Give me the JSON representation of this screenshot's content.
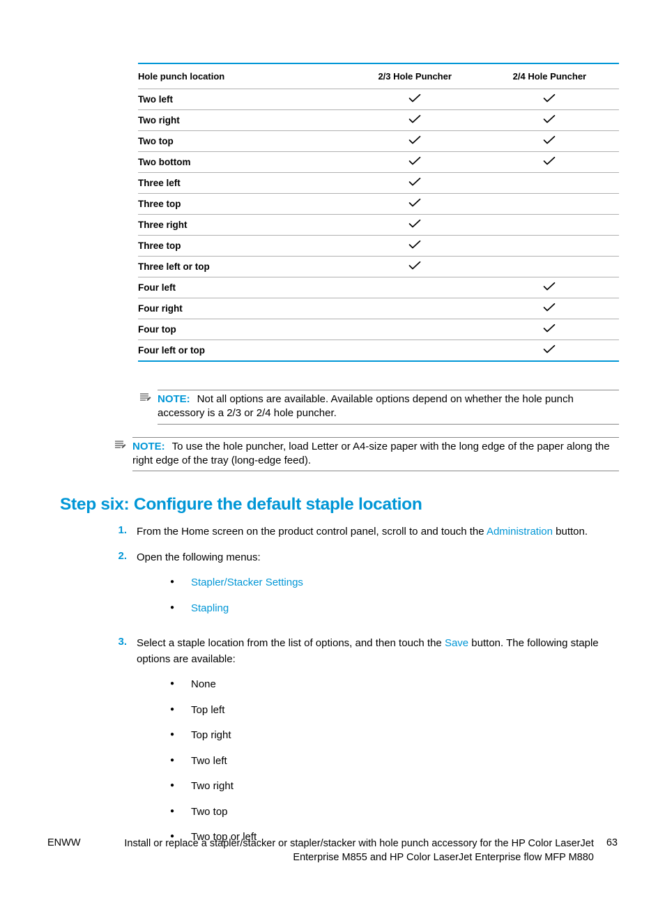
{
  "colors": {
    "accent": "#0096d6",
    "border_gray": "#b0b0b0",
    "text": "#000000",
    "note_border": "#888888"
  },
  "table": {
    "columns": [
      "Hole punch location",
      "2/3 Hole Puncher",
      "2/4 Hole Puncher"
    ],
    "rows": [
      {
        "label": "Two left",
        "c23": true,
        "c24": true
      },
      {
        "label": "Two right",
        "c23": true,
        "c24": true
      },
      {
        "label": "Two top",
        "c23": true,
        "c24": true
      },
      {
        "label": "Two bottom",
        "c23": true,
        "c24": true
      },
      {
        "label": "Three left",
        "c23": true,
        "c24": false
      },
      {
        "label": "Three top",
        "c23": true,
        "c24": false
      },
      {
        "label": "Three right",
        "c23": true,
        "c24": false
      },
      {
        "label": "Three top",
        "c23": true,
        "c24": false
      },
      {
        "label": "Three left or top",
        "c23": true,
        "c24": false
      },
      {
        "label": "Four left",
        "c23": false,
        "c24": true
      },
      {
        "label": "Four right",
        "c23": false,
        "c24": true
      },
      {
        "label": "Four top",
        "c23": false,
        "c24": true
      },
      {
        "label": "Four left or top",
        "c23": false,
        "c24": true
      }
    ]
  },
  "note1": {
    "label": "NOTE:",
    "text": "Not all options are available. Available options depend on whether the hole punch accessory is a 2/3 or 2/4 hole puncher."
  },
  "note2": {
    "label": "NOTE:",
    "text": "To use the hole puncher, load Letter or A4-size paper with the long edge of the paper along the right edge of the tray (long-edge feed)."
  },
  "heading": "Step six: Configure the default staple location",
  "steps": [
    {
      "num": "1.",
      "parts": [
        {
          "t": "From the Home screen on the product control panel, scroll to and touch the "
        },
        {
          "t": "Administration",
          "ui": true
        },
        {
          "t": " button."
        }
      ]
    },
    {
      "num": "2.",
      "parts": [
        {
          "t": "Open the following menus:"
        }
      ],
      "sub_blue": [
        "Stapler/Stacker Settings",
        "Stapling"
      ]
    },
    {
      "num": "3.",
      "parts": [
        {
          "t": "Select a staple location from the list of options, and then touch the "
        },
        {
          "t": "Save",
          "ui": true
        },
        {
          "t": " button. The following staple options are available:"
        }
      ],
      "sub": [
        "None",
        "Top left",
        "Top right",
        "Two left",
        "Two right",
        "Two top",
        "Two top or left"
      ]
    }
  ],
  "footer": {
    "left": "ENWW",
    "center": "Install or replace a stapler/stacker or stapler/stacker with hole punch accessory for the HP Color LaserJet Enterprise M855 and HP Color LaserJet Enterprise flow MFP M880",
    "page": "63"
  }
}
